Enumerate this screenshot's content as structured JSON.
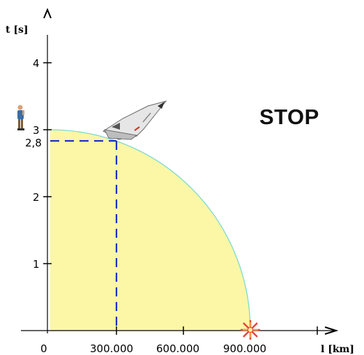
{
  "controls": {
    "stop_label": "STOP"
  },
  "axes": {
    "x_label": "l [km]",
    "y_label": "t [s]",
    "x_ticks": [
      "0",
      "300.000",
      "600.000",
      "900.000"
    ],
    "y_ticks": [
      "1",
      "2",
      "3",
      "4"
    ]
  },
  "marker": {
    "t_value": "2,8",
    "l_value_km": 300000
  },
  "colors": {
    "region_fill": "#fbf7a6",
    "region_edge": "#7ed9d0",
    "marker_line": "#1a2fc8"
  },
  "icons": [
    "observer-person-icon",
    "space-shuttle-icon",
    "explosion-star-icon"
  ],
  "chart_data": {
    "type": "area",
    "description_curve": "quarter circle region",
    "x_units": "km",
    "y_units": "s",
    "x": [
      0,
      300000,
      600000,
      900000
    ],
    "y": [
      3.0,
      2.8,
      2.24,
      0
    ],
    "point": {
      "x": 300000,
      "y": 2.8
    },
    "xlim": [
      0,
      1200000
    ],
    "ylim": [
      0,
      4.6
    ]
  }
}
